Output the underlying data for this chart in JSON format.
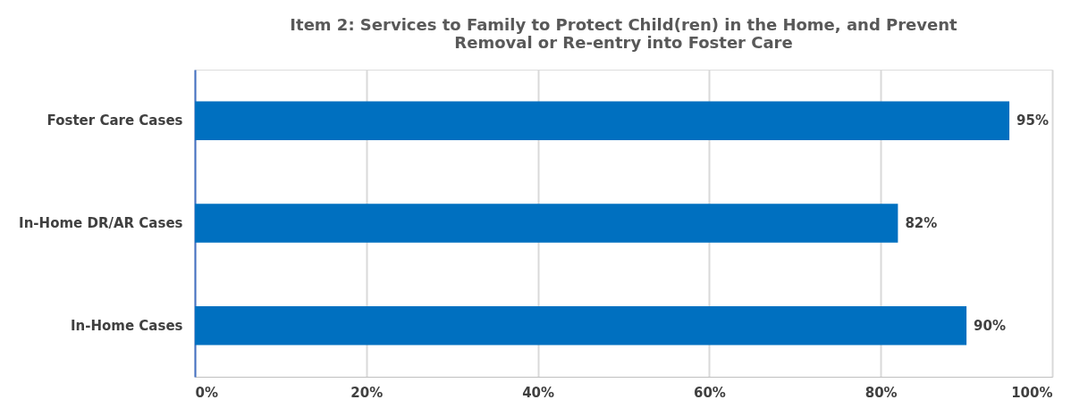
{
  "chart_data": {
    "type": "bar",
    "orientation": "horizontal",
    "title": "Item 2: Services to  Family to Protect Child(ren) in the Home, and Prevent Removal or Re-entry into Foster Care",
    "categories": [
      "Foster Care Cases",
      "In-Home DR/AR Cases",
      "In-Home Cases"
    ],
    "values": [
      95,
      82,
      90
    ],
    "value_labels": [
      "95%",
      "82%",
      "90%"
    ],
    "color": "#0070c0",
    "xlim": [
      0,
      100
    ],
    "xticks": [
      {
        "value": 0,
        "label": "0%"
      },
      {
        "value": 20,
        "label": "20%"
      },
      {
        "value": 40,
        "label": "40%"
      },
      {
        "value": 60,
        "label": "60%"
      },
      {
        "value": 80,
        "label": "80%"
      },
      {
        "value": 100,
        "label": "100%"
      }
    ],
    "grid": "x"
  }
}
